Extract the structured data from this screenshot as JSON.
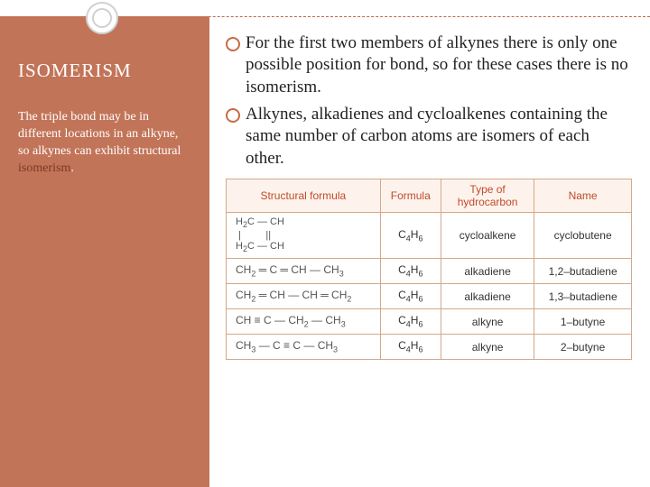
{
  "colors": {
    "sidebar_bg": "#c27458",
    "accent": "#c96b45",
    "table_border": "#d4a88a",
    "table_header_bg": "#fdf3ec",
    "table_header_text": "#c04a2a"
  },
  "sidebar": {
    "title": "ISOMERISM",
    "subtitle_before": "The triple bond may be in different locations in an alkyne, so alkynes can exhibit structural ",
    "subtitle_em": "isomerism",
    "subtitle_after": "."
  },
  "bullets": [
    "For the first two members of alkynes there is only one possible position for bond, so for these cases there is no isomerism.",
    "Alkynes, alkadienes and cycloalkenes containing the same number of carbon atoms are isomers of each other."
  ],
  "table": {
    "headers": [
      "Structural formula",
      "Formula",
      "Type of hydrocarbon",
      "Name"
    ],
    "rows": [
      {
        "structural_html": "<span class='cyclo'>H<span class='sub'>2</span>C — CH<br>&nbsp;|&nbsp;&nbsp;&nbsp;&nbsp;&nbsp;&nbsp;&nbsp;&nbsp;&nbsp;||<br>H<span class='sub'>2</span>C — CH</span>",
        "formula_html": "C<span class='sub'>4</span>H<span class='sub'>6</span>",
        "type": "cycloalkene",
        "name": "cyclobutene",
        "tall": true
      },
      {
        "structural_html": "CH<span class='sub'>2</span> ═ C ═ CH — CH<span class='sub'>3</span>",
        "formula_html": "C<span class='sub'>4</span>H<span class='sub'>6</span>",
        "type": "alkadiene",
        "name": "1,2–butadiene"
      },
      {
        "structural_html": "CH<span class='sub'>2</span> ═ CH — CH ═ CH<span class='sub'>2</span>",
        "formula_html": "C<span class='sub'>4</span>H<span class='sub'>6</span>",
        "type": "alkadiene",
        "name": "1,3–butadiene"
      },
      {
        "structural_html": "CH ≡ C — CH<span class='sub'>2</span> — CH<span class='sub'>3</span>",
        "formula_html": "C<span class='sub'>4</span>H<span class='sub'>6</span>",
        "type": "alkyne",
        "name": "1–butyne"
      },
      {
        "structural_html": "CH<span class='sub'>3</span> — C ≡ C — CH<span class='sub'>3</span>",
        "formula_html": "C<span class='sub'>4</span>H<span class='sub'>6</span>",
        "type": "alkyne",
        "name": "2–butyne"
      }
    ]
  }
}
